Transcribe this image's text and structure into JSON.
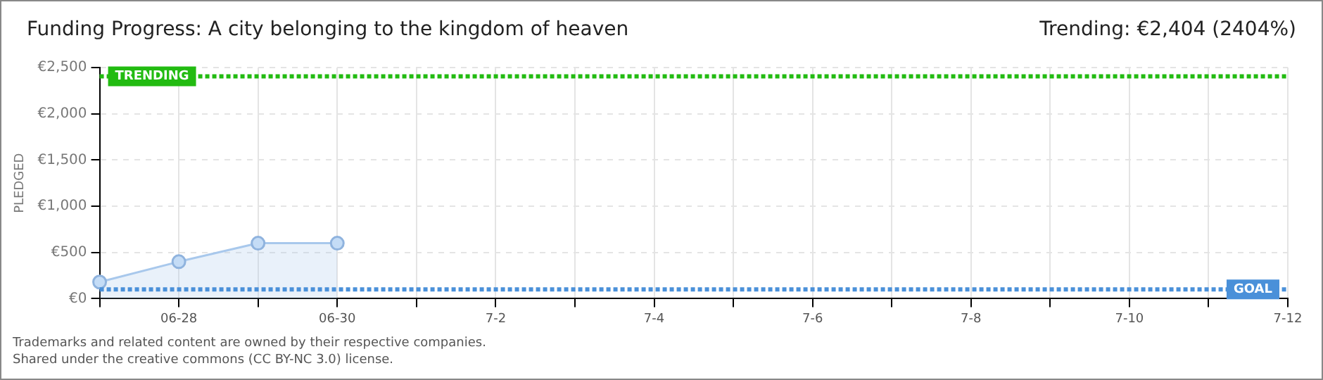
{
  "chart_data": {
    "type": "area",
    "title": "Funding Progress: A city belonging to the kingdom of heaven",
    "subtitle": "Trending: €2,404 (2404%)",
    "ylabel": "PLEDGED",
    "categories": [
      null,
      "06-28",
      null,
      "06-30",
      null,
      "7-2",
      null,
      "7-4",
      null,
      "7-6",
      null,
      "7-8",
      null,
      "7-10",
      null,
      "7-12"
    ],
    "series": [
      {
        "color": "#a8c8ec",
        "values": [
          180,
          400,
          600,
          600,
          null,
          null,
          null,
          null,
          null,
          null,
          null,
          null,
          null,
          null,
          null,
          null
        ]
      }
    ],
    "ylim": [
      0,
      2500
    ],
    "yticks": [
      {
        "value": 0,
        "label": "€0"
      },
      {
        "value": 500,
        "label": "€500"
      },
      {
        "value": 1000,
        "label": "€1,000"
      },
      {
        "value": 1500,
        "label": "€1,500"
      },
      {
        "value": 2000,
        "label": "€2,000"
      },
      {
        "value": 2500,
        "label": "€2,500"
      }
    ],
    "ref_lines": [
      {
        "axis": "y",
        "value": 2404,
        "label": "TRENDING",
        "color": "#22bb11",
        "line_style": "dotted"
      },
      {
        "axis": "y",
        "value": 100,
        "label": "GOAL",
        "color": "#4a90d9",
        "line_style": "dotted"
      }
    ],
    "grid": true,
    "legend": false,
    "marker": "circle",
    "annotations": [
      "Trademarks and related content are owned by their respective companies.",
      "Shared under the creative commons (CC BY-NC 3.0) license."
    ]
  }
}
